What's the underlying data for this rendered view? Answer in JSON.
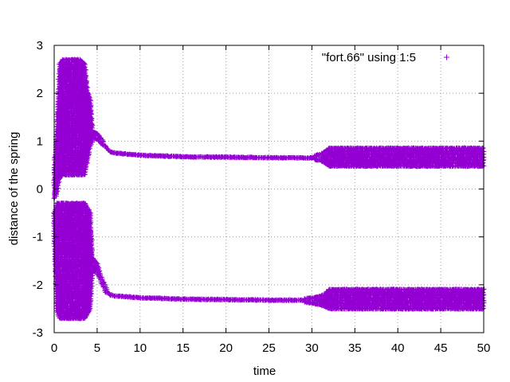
{
  "chart_data": {
    "type": "scatter",
    "xlabel": "time",
    "ylabel": "distance of the spring",
    "xlim": [
      0,
      50
    ],
    "ylim": [
      -3,
      3
    ],
    "xticks": [
      0,
      5,
      10,
      15,
      20,
      25,
      30,
      35,
      40,
      45,
      50
    ],
    "yticks": [
      -3,
      -2,
      -1,
      0,
      1,
      2,
      3
    ],
    "grid": true,
    "legend_position": "top-right",
    "marker": "plus",
    "color": "#9400d3",
    "series": [
      {
        "name": "\"fort.66\" using 1:5",
        "bands": [
          {
            "x": [
              0,
              0.3,
              0.6,
              1.0,
              1.5,
              2.0,
              2.5,
              3.0,
              3.6,
              3.9,
              4.2,
              4.5,
              5.0,
              5.5,
              6.0,
              6.5,
              7.0,
              10.0,
              15.0,
              20.0,
              25.0,
              28.0,
              30.0,
              31.0,
              31.5,
              32.0,
              35.0,
              40.0,
              45.0,
              50.0
            ],
            "lower": [
              -0.2,
              -0.1,
              0.2,
              0.3,
              0.3,
              0.3,
              0.3,
              0.3,
              0.3,
              0.6,
              0.9,
              1.05,
              1.05,
              0.95,
              0.85,
              0.77,
              0.75,
              0.7,
              0.67,
              0.66,
              0.65,
              0.64,
              0.62,
              0.6,
              0.55,
              0.48,
              0.48,
              0.48,
              0.48,
              0.48
            ],
            "upper": [
              0.5,
              1.3,
              2.6,
              2.7,
              2.7,
              2.7,
              2.7,
              2.7,
              2.6,
              2.0,
              1.9,
              1.2,
              1.15,
              1.05,
              0.9,
              0.79,
              0.76,
              0.71,
              0.68,
              0.67,
              0.66,
              0.66,
              0.68,
              0.72,
              0.78,
              0.85,
              0.85,
              0.85,
              0.85,
              0.85
            ]
          },
          {
            "x": [
              0,
              0.3,
              0.6,
              1.0,
              1.5,
              2.0,
              2.5,
              3.0,
              3.6,
              3.9,
              4.2,
              4.5,
              5.0,
              5.5,
              6.0,
              6.5,
              7.0,
              10.0,
              15.0,
              20.0,
              25.0,
              28.0,
              30.0,
              31.0,
              31.5,
              32.0,
              35.0,
              40.0,
              45.0,
              50.0
            ],
            "lower": [
              -1.2,
              -2.5,
              -2.7,
              -2.7,
              -2.7,
              -2.7,
              -2.7,
              -2.7,
              -2.7,
              -2.6,
              -2.5,
              -1.7,
              -1.75,
              -1.95,
              -2.15,
              -2.22,
              -2.24,
              -2.28,
              -2.31,
              -2.32,
              -2.33,
              -2.34,
              -2.38,
              -2.42,
              -2.45,
              -2.5,
              -2.5,
              -2.5,
              -2.5,
              -2.5
            ],
            "upper": [
              -0.5,
              -0.3,
              -0.3,
              -0.3,
              -0.3,
              -0.3,
              -0.3,
              -0.3,
              -0.3,
              -0.4,
              -0.5,
              -1.45,
              -1.55,
              -1.85,
              -2.05,
              -2.2,
              -2.22,
              -2.26,
              -2.29,
              -2.3,
              -2.31,
              -2.3,
              -2.28,
              -2.24,
              -2.2,
              -2.1,
              -2.1,
              -2.1,
              -2.1,
              -2.1
            ]
          }
        ]
      }
    ]
  }
}
